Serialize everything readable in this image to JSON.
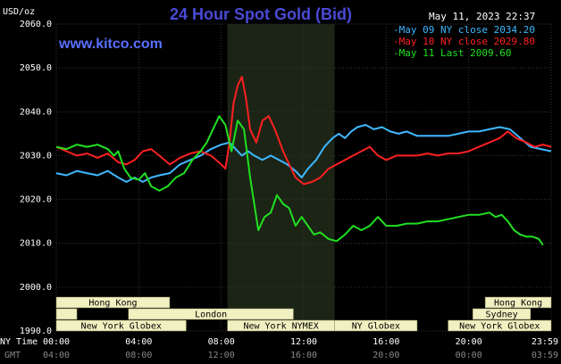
{
  "header": {
    "title": "24 Hour Spot Gold (Bid)",
    "date": "May 11, 2023 22:37",
    "website": "www.kitco.com",
    "y_unit": "USD/oz"
  },
  "colors": {
    "background": "#000000",
    "grid": "#333333",
    "highlight": "#1c2416",
    "may09": "#3fb8ff",
    "may10": "#ff2020",
    "may11": "#20e020",
    "market_box": "#f0f0c0"
  },
  "time_labels": {
    "ny_prefix": "NY Time",
    "gmt_prefix": "GMT",
    "ny": [
      "00:00",
      "04:00",
      "08:00",
      "12:00",
      "16:00",
      "20:00",
      "23:59"
    ],
    "gmt": [
      "04:00",
      "08:00",
      "12:00",
      "16:00",
      "20:00",
      "00:00",
      "03:59"
    ]
  },
  "markets": {
    "row1": [
      {
        "label": "Hong Kong",
        "start": 0,
        "end": 5.5
      },
      {
        "label": "Hong Kong",
        "start": 20.8,
        "end": 24
      }
    ],
    "row2": [
      {
        "label": "",
        "start": 0,
        "end": 1
      },
      {
        "label": "London",
        "start": 3.5,
        "end": 11.5
      },
      {
        "label": "Sydney",
        "start": 20.2,
        "end": 23
      }
    ],
    "row3": [
      {
        "label": "New York Globex",
        "start": 0,
        "end": 6.3
      },
      {
        "label": "New York NYMEX",
        "start": 8.3,
        "end": 13.5
      },
      {
        "label": "NY Globex",
        "start": 13.5,
        "end": 17.5
      },
      {
        "label": "New York Globex",
        "start": 19,
        "end": 24
      }
    ]
  },
  "chart_data": {
    "type": "line",
    "title": "24 Hour Spot Gold (Bid)",
    "ylabel": "USD/oz",
    "xlabel": "",
    "x_unit": "hours (NY Time)",
    "xlim": [
      0,
      24
    ],
    "ylim": [
      1990,
      2060
    ],
    "y_ticks": [
      1990.0,
      2000.0,
      2010.0,
      2020.0,
      2030.0,
      2040.0,
      2050.0,
      2060.0
    ],
    "grid": true,
    "highlight_range": [
      8.3,
      13.5
    ],
    "legend_position": "top-right",
    "series": [
      {
        "name": "May 09 NY close 2034.20",
        "color_key": "may09",
        "points": [
          [
            0,
            2026
          ],
          [
            0.5,
            2025.5
          ],
          [
            1,
            2026.5
          ],
          [
            1.5,
            2026
          ],
          [
            2,
            2025.5
          ],
          [
            2.5,
            2026.5
          ],
          [
            3,
            2025
          ],
          [
            3.4,
            2024
          ],
          [
            3.8,
            2025
          ],
          [
            4.2,
            2024
          ],
          [
            4.6,
            2025
          ],
          [
            5,
            2025.5
          ],
          [
            5.5,
            2026
          ],
          [
            6,
            2028
          ],
          [
            6.5,
            2029
          ],
          [
            7,
            2030
          ],
          [
            7.5,
            2031.5
          ],
          [
            8,
            2032.5
          ],
          [
            8.4,
            2033
          ],
          [
            8.7,
            2031.5
          ],
          [
            9,
            2030
          ],
          [
            9.3,
            2031
          ],
          [
            9.6,
            2030
          ],
          [
            10,
            2029
          ],
          [
            10.4,
            2030
          ],
          [
            10.8,
            2029
          ],
          [
            11.2,
            2028
          ],
          [
            11.6,
            2026.5
          ],
          [
            11.9,
            2025
          ],
          [
            12.2,
            2027
          ],
          [
            12.6,
            2029
          ],
          [
            13,
            2032
          ],
          [
            13.4,
            2034
          ],
          [
            13.7,
            2035
          ],
          [
            14,
            2034
          ],
          [
            14.3,
            2035.5
          ],
          [
            14.6,
            2036.5
          ],
          [
            15,
            2037
          ],
          [
            15.4,
            2036
          ],
          [
            15.8,
            2036.5
          ],
          [
            16.2,
            2035.5
          ],
          [
            16.6,
            2035
          ],
          [
            17,
            2035.5
          ],
          [
            17.5,
            2034.5
          ],
          [
            18,
            2034.5
          ],
          [
            18.5,
            2034.5
          ],
          [
            19,
            2034.5
          ],
          [
            19.5,
            2035
          ],
          [
            20,
            2035.5
          ],
          [
            20.5,
            2035.5
          ],
          [
            21,
            2036
          ],
          [
            21.5,
            2036.5
          ],
          [
            22,
            2036
          ],
          [
            22.5,
            2034
          ],
          [
            23,
            2032
          ],
          [
            23.5,
            2031.5
          ],
          [
            24,
            2031
          ]
        ]
      },
      {
        "name": "May 10 NY close 2029.80",
        "color_key": "may10",
        "points": [
          [
            0,
            2032
          ],
          [
            0.5,
            2031
          ],
          [
            1,
            2030
          ],
          [
            1.5,
            2030.5
          ],
          [
            2,
            2029.5
          ],
          [
            2.5,
            2030.5
          ],
          [
            3,
            2028.5
          ],
          [
            3.4,
            2028
          ],
          [
            3.8,
            2029
          ],
          [
            4.2,
            2031
          ],
          [
            4.6,
            2031.5
          ],
          [
            5,
            2030
          ],
          [
            5.5,
            2028
          ],
          [
            6,
            2029.5
          ],
          [
            6.5,
            2030.5
          ],
          [
            7,
            2031
          ],
          [
            7.5,
            2030
          ],
          [
            8,
            2028
          ],
          [
            8.2,
            2027
          ],
          [
            8.4,
            2033
          ],
          [
            8.6,
            2042
          ],
          [
            8.8,
            2046
          ],
          [
            9,
            2048
          ],
          [
            9.2,
            2043
          ],
          [
            9.4,
            2036
          ],
          [
            9.7,
            2033
          ],
          [
            10,
            2038
          ],
          [
            10.3,
            2039
          ],
          [
            10.6,
            2036
          ],
          [
            11,
            2031
          ],
          [
            11.3,
            2028
          ],
          [
            11.6,
            2025
          ],
          [
            12,
            2023.5
          ],
          [
            12.4,
            2024
          ],
          [
            12.8,
            2025
          ],
          [
            13.2,
            2027
          ],
          [
            13.6,
            2028
          ],
          [
            14,
            2029
          ],
          [
            14.4,
            2030
          ],
          [
            14.8,
            2031
          ],
          [
            15.2,
            2032
          ],
          [
            15.6,
            2030
          ],
          [
            16,
            2029
          ],
          [
            16.5,
            2030
          ],
          [
            17,
            2030
          ],
          [
            17.5,
            2030
          ],
          [
            18,
            2030.5
          ],
          [
            18.5,
            2030
          ],
          [
            19,
            2030.5
          ],
          [
            19.5,
            2030.5
          ],
          [
            20,
            2031
          ],
          [
            20.5,
            2032
          ],
          [
            21,
            2033
          ],
          [
            21.5,
            2034
          ],
          [
            21.9,
            2035.5
          ],
          [
            22.3,
            2034
          ],
          [
            22.8,
            2033
          ],
          [
            23.2,
            2032
          ],
          [
            23.6,
            2032.5
          ],
          [
            24,
            2032
          ]
        ]
      },
      {
        "name": "May 11 Last 2009.60",
        "color_key": "may11",
        "points": [
          [
            0,
            2032
          ],
          [
            0.5,
            2031.5
          ],
          [
            1,
            2032.5
          ],
          [
            1.5,
            2032
          ],
          [
            2,
            2032.5
          ],
          [
            2.5,
            2031.5
          ],
          [
            2.8,
            2030
          ],
          [
            3,
            2031
          ],
          [
            3.3,
            2027
          ],
          [
            3.6,
            2025
          ],
          [
            4,
            2024.5
          ],
          [
            4.3,
            2026
          ],
          [
            4.6,
            2023
          ],
          [
            5,
            2022
          ],
          [
            5.4,
            2023
          ],
          [
            5.8,
            2025
          ],
          [
            6.2,
            2026
          ],
          [
            6.6,
            2029
          ],
          [
            7,
            2031
          ],
          [
            7.3,
            2033
          ],
          [
            7.6,
            2036
          ],
          [
            7.9,
            2039
          ],
          [
            8.2,
            2037
          ],
          [
            8.5,
            2031
          ],
          [
            8.8,
            2038
          ],
          [
            9.1,
            2036
          ],
          [
            9.4,
            2025
          ],
          [
            9.6,
            2019
          ],
          [
            9.8,
            2013
          ],
          [
            10.1,
            2016
          ],
          [
            10.4,
            2017
          ],
          [
            10.7,
            2021
          ],
          [
            11,
            2019
          ],
          [
            11.3,
            2018
          ],
          [
            11.6,
            2014
          ],
          [
            11.9,
            2016
          ],
          [
            12.2,
            2014
          ],
          [
            12.5,
            2012
          ],
          [
            12.8,
            2012.5
          ],
          [
            13.2,
            2011
          ],
          [
            13.6,
            2010.5
          ],
          [
            14,
            2012
          ],
          [
            14.4,
            2014
          ],
          [
            14.8,
            2013
          ],
          [
            15.2,
            2014
          ],
          [
            15.6,
            2016
          ],
          [
            16,
            2014
          ],
          [
            16.5,
            2014
          ],
          [
            17,
            2014.5
          ],
          [
            17.5,
            2014.5
          ],
          [
            18,
            2015
          ],
          [
            18.5,
            2015
          ],
          [
            19,
            2015.5
          ],
          [
            19.5,
            2016
          ],
          [
            20,
            2016.5
          ],
          [
            20.5,
            2016.5
          ],
          [
            21,
            2017
          ],
          [
            21.3,
            2016
          ],
          [
            21.6,
            2016.5
          ],
          [
            21.9,
            2015
          ],
          [
            22.2,
            2013
          ],
          [
            22.5,
            2012
          ],
          [
            22.8,
            2011.5
          ],
          [
            23.1,
            2011.5
          ],
          [
            23.4,
            2011
          ],
          [
            23.6,
            2009.6
          ]
        ]
      }
    ]
  }
}
